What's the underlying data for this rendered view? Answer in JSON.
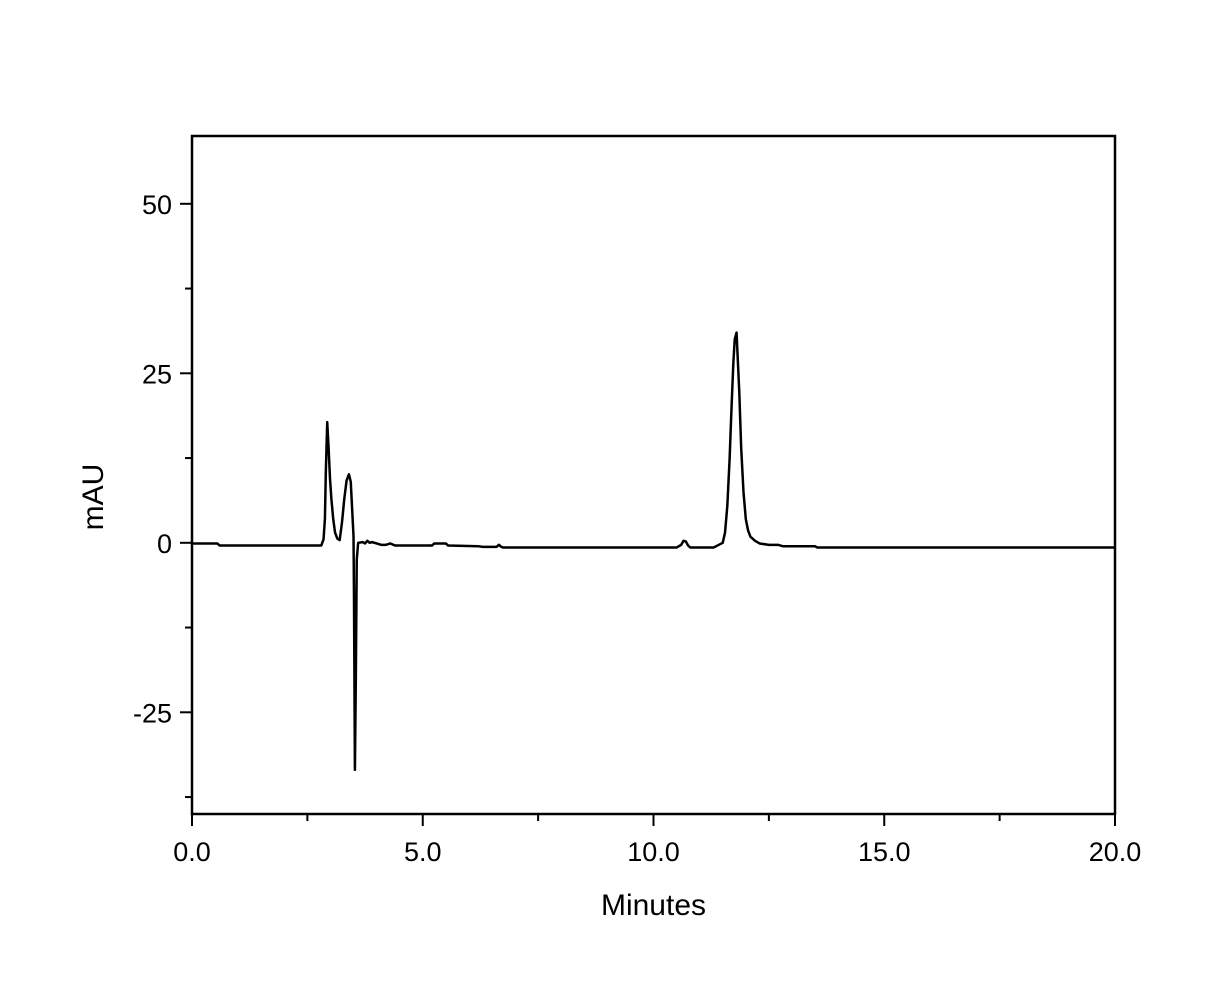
{
  "chart_data": {
    "type": "line",
    "xlabel": "Minutes",
    "ylabel": "mAU",
    "xlim": [
      0,
      20
    ],
    "ylim": [
      -40,
      60
    ],
    "x_ticks": [
      0,
      5,
      10,
      15,
      20
    ],
    "x_tick_labels": [
      "0.0",
      "5.0",
      "10.0",
      "15.0",
      "20.0"
    ],
    "y_ticks": [
      -25,
      0,
      25,
      50
    ],
    "y_tick_labels": [
      "-25",
      "0",
      "25",
      "50"
    ],
    "x_minor_ticks": [
      2.5,
      7.5,
      12.5,
      17.5
    ],
    "y_minor_ticks": [
      -37.5,
      -12.5,
      12.5,
      37.5
    ],
    "grid": false,
    "line_color": "#000000",
    "series": [
      {
        "x": [
          0.0,
          0.55,
          0.6,
          2.8,
          2.85,
          2.88,
          2.9,
          2.93,
          2.96,
          2.99,
          3.02,
          3.06,
          3.1,
          3.15,
          3.2,
          3.25,
          3.3,
          3.35,
          3.4,
          3.44,
          3.47,
          3.5,
          3.51,
          3.53,
          3.55,
          3.57,
          3.6,
          3.7,
          3.75,
          3.8,
          3.85,
          3.9,
          4.0,
          4.1,
          4.2,
          4.3,
          4.4,
          5.2,
          5.25,
          5.5,
          5.55,
          6.2,
          6.3,
          6.6,
          6.65,
          6.7,
          6.75,
          10.5,
          10.6,
          10.65,
          10.7,
          10.75,
          10.8,
          11.3,
          11.5,
          11.55,
          11.6,
          11.65,
          11.68,
          11.7,
          11.73,
          11.76,
          11.8,
          11.82,
          11.86,
          11.9,
          11.95,
          12.0,
          12.05,
          12.1,
          12.2,
          12.3,
          12.5,
          12.7,
          12.8,
          13.5,
          13.55,
          20.0
        ],
        "y": [
          -0.1,
          -0.1,
          -0.4,
          -0.4,
          0.5,
          3.5,
          10.5,
          17.8,
          14.0,
          9.5,
          6.5,
          3.5,
          1.5,
          0.6,
          0.4,
          3.0,
          6.5,
          9.2,
          10.1,
          9.0,
          5.0,
          1.0,
          -8.0,
          -33.5,
          -20.0,
          -2.5,
          0.0,
          0.1,
          -0.1,
          0.3,
          0.0,
          0.1,
          -0.1,
          -0.3,
          -0.3,
          -0.1,
          -0.4,
          -0.4,
          -0.1,
          -0.1,
          -0.4,
          -0.5,
          -0.6,
          -0.6,
          -0.3,
          -0.6,
          -0.7,
          -0.7,
          -0.3,
          0.3,
          0.2,
          -0.4,
          -0.7,
          -0.7,
          0.0,
          1.5,
          5.5,
          12.5,
          18.0,
          21.5,
          26.5,
          30.0,
          31.0,
          28.0,
          22.0,
          14.0,
          7.5,
          3.5,
          1.8,
          0.9,
          0.3,
          -0.1,
          -0.3,
          -0.3,
          -0.5,
          -0.5,
          -0.7,
          -0.7
        ]
      }
    ]
  }
}
